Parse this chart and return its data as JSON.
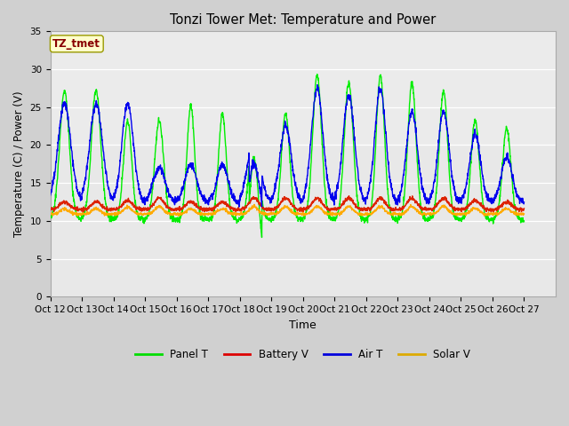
{
  "title": "Tonzi Tower Met: Temperature and Power",
  "xlabel": "Time",
  "ylabel": "Temperature (C) / Power (V)",
  "xlim": [
    0,
    16
  ],
  "ylim": [
    0,
    35
  ],
  "yticks": [
    0,
    5,
    10,
    15,
    20,
    25,
    30,
    35
  ],
  "xtick_labels": [
    "Oct 12",
    "Oct 13",
    "Oct 14",
    "Oct 15",
    "Oct 16",
    "Oct 17",
    "Oct 18",
    "Oct 19",
    "Oct 20",
    "Oct 21",
    "Oct 22",
    "Oct 23",
    "Oct 24",
    "Oct 25",
    "Oct 26",
    "Oct 27"
  ],
  "legend_entries": [
    "Panel T",
    "Battery V",
    "Air T",
    "Solar V"
  ],
  "legend_colors": [
    "#00dd00",
    "#dd0000",
    "#0000dd",
    "#ddaa00"
  ],
  "annotation_text": "TZ_tmet",
  "annotation_color": "#880000",
  "annotation_bg": "#ffffcc",
  "panel_t_color": "#00ee00",
  "battery_v_color": "#dd2200",
  "air_t_color": "#0000ee",
  "solar_v_color": "#ffaa00",
  "fig_bg": "#d0d0d0",
  "plot_bg": "#e8e8e8",
  "plot_bg2": "#d8d8d8",
  "grid_color": "#ffffff"
}
